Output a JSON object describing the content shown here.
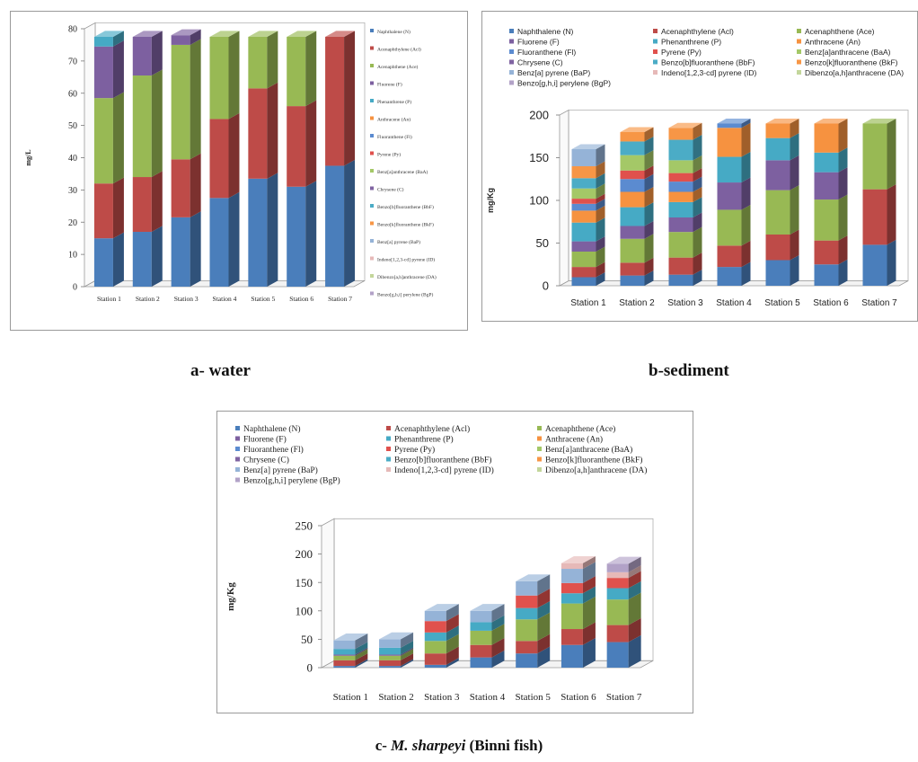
{
  "legend_labels_a": [
    "Naphthalene (N)",
    "Acenaphthylene (Acl)",
    "Acenaphthene (Ace)",
    "Fluorene (F)",
    "Phenanthrene (P)",
    "Anthracene (An)",
    "Fluoranthene (Fl)",
    "Pyrene (Py)",
    "Benz[a]anthracene (BaA)",
    "Chrysene (C)",
    "Benzo[b]fluoranthene (BbF)",
    "Benzo[k]fluoranthene (BkF)",
    "Benz[a] pyrene (BaP)",
    "Indeno[1,2,3-cd] pyrene (ID)",
    "Dibenzo[a,h]anthracene (DA)",
    "Benzo[g,h,i] perylene (BgP)"
  ],
  "legend_labels_bc": [
    "Naphthalene (N)",
    "Acenaphthylene (Acl)",
    "Acenaphthene (Ace)",
    "Fluorene (F)",
    "Phenanthrene (P)",
    "Anthracene (An)",
    "Fluoranthene (Fl)",
    "Pyrene (Py)",
    "Benz[a]anthracene (BaA)",
    "Chrysene (C)",
    "Benzo[b]fluoranthene (BbF)",
    "Benzo[k]fluoranthene (BkF)",
    "Benz[a] pyrene (BaP)",
    "Indeno[1,2,3-cd] pyrene (ID)",
    "Dibenzo[a,h]anthracene (DA)",
    "Benzo[g,h,i] perylene (BgP)"
  ],
  "series_colors": [
    "#4a7ebb",
    "#be4b48",
    "#98b954",
    "#7d60a0",
    "#46aac5",
    "#f69240",
    "#5b8bd0",
    "#e0514d",
    "#a4c867",
    "#8064a2",
    "#4bacc6",
    "#f79646",
    "#95b3d7",
    "#e6b9b8",
    "#c3d69b",
    "#b2a2c7"
  ],
  "captions": {
    "a": "a- water",
    "b": "b-sediment",
    "c_prefix": "c-",
    "c_species": "M. sharpeyi",
    "c_suffix": " (Binni fish)"
  },
  "chart_data": [
    {
      "id": "a",
      "type": "bar",
      "stacked": true,
      "ylabel": "mg/L",
      "ylim": [
        0,
        80
      ],
      "yticks": [
        "0",
        "10",
        "20",
        "30",
        "40",
        "50",
        "60",
        "70",
        "80"
      ],
      "categories": [
        "Station 1",
        "Station 2",
        "Station 3",
        "Station 4",
        "Station 5",
        "Station 6",
        "Station 7"
      ],
      "series": [
        {
          "name": "Naphthalene (N)",
          "values": [
            15,
            17,
            21.5,
            27.5,
            33.5,
            31,
            37.5
          ]
        },
        {
          "name": "Acenaphthylene (Acl)",
          "values": [
            17,
            17,
            18,
            24.5,
            28,
            25,
            40
          ]
        },
        {
          "name": "Acenaphthene (Ace)",
          "values": [
            26.5,
            31.5,
            35.5,
            25.5,
            16,
            21.5,
            0
          ]
        },
        {
          "name": "Fluorene (F)",
          "values": [
            16,
            12,
            3,
            0,
            0,
            0,
            0
          ]
        },
        {
          "name": "Phenanthrene (P)",
          "values": [
            3,
            0,
            0,
            0,
            0,
            0,
            0
          ]
        }
      ],
      "legend": "right"
    },
    {
      "id": "b",
      "type": "bar",
      "stacked": true,
      "ylabel": "mg/Kg",
      "ylim": [
        0,
        200
      ],
      "yticks": [
        "0",
        "50",
        "100",
        "150",
        "200"
      ],
      "categories": [
        "Station 1",
        "Station 2",
        "Station 3",
        "Station 4",
        "Station 5",
        "Station 6",
        "Station 7"
      ],
      "series": [
        {
          "name": "Naphthalene (N)",
          "values": [
            10,
            12,
            13,
            22,
            30,
            25,
            48
          ]
        },
        {
          "name": "Acenaphthylene (Acl)",
          "values": [
            12,
            15,
            20,
            25,
            30,
            28,
            65
          ]
        },
        {
          "name": "Acenaphthene (Ace)",
          "values": [
            18,
            28,
            30,
            42,
            52,
            48,
            77
          ]
        },
        {
          "name": "Fluorene (F)",
          "values": [
            12,
            15,
            17,
            32,
            35,
            32,
            0
          ]
        },
        {
          "name": "Phenanthrene (P)",
          "values": [
            22,
            22,
            18,
            30,
            26,
            23,
            0
          ]
        },
        {
          "name": "Anthracene (An)",
          "values": [
            14,
            18,
            12,
            34,
            17,
            34,
            0
          ]
        },
        {
          "name": "Fluoranthene (Fl)",
          "values": [
            8,
            15,
            12,
            5,
            0,
            0,
            0
          ]
        },
        {
          "name": "Pyrene (Py)",
          "values": [
            6,
            10,
            10,
            0,
            0,
            0,
            0
          ]
        },
        {
          "name": "Benz[a]anthracene (BaA)",
          "values": [
            12,
            18,
            15,
            0,
            0,
            0,
            0
          ]
        },
        {
          "name": "Chrysene (C)",
          "values": [
            0,
            0,
            0,
            0,
            0,
            0,
            0
          ]
        },
        {
          "name": "Benzo[b]fluoranthene (BbF)",
          "values": [
            12,
            16,
            24,
            0,
            0,
            0,
            0
          ]
        },
        {
          "name": "Benzo[k]fluoranthene (BkF)",
          "values": [
            14,
            11,
            14,
            0,
            0,
            0,
            0
          ]
        },
        {
          "name": "Benz[a] pyrene (BaP)",
          "values": [
            20,
            0,
            0,
            0,
            0,
            0,
            0
          ]
        }
      ],
      "legend": "top"
    },
    {
      "id": "c",
      "type": "bar",
      "stacked": true,
      "ylabel": "mg/Kg",
      "ylim": [
        0,
        250
      ],
      "yticks": [
        "0",
        "50",
        "100",
        "150",
        "200",
        "250"
      ],
      "categories": [
        "Station 1",
        "Station 2",
        "Station 3",
        "Station 4",
        "Station 5",
        "Station 6",
        "Station 7"
      ],
      "series": [
        {
          "name": "Naphthalene (N)",
          "values": [
            3,
            3,
            5,
            18,
            25,
            40,
            45
          ]
        },
        {
          "name": "Acenaphthylene (Acl)",
          "values": [
            10,
            10,
            20,
            22,
            22,
            28,
            30
          ]
        },
        {
          "name": "Acenaphthene (Ace)",
          "values": [
            8,
            8,
            22,
            25,
            38,
            45,
            45
          ]
        },
        {
          "name": "Fluorene (F)",
          "values": [
            2,
            2,
            0,
            0,
            0,
            0,
            0
          ]
        },
        {
          "name": "Phenanthrene (P)",
          "values": [
            10,
            12,
            15,
            15,
            20,
            18,
            20
          ]
        },
        {
          "name": "Anthracene (An)",
          "values": [
            0,
            0,
            0,
            0,
            0,
            0,
            0
          ]
        },
        {
          "name": "Fluoranthene (Fl)",
          "values": [
            0,
            0,
            0,
            0,
            0,
            0,
            0
          ]
        },
        {
          "name": "Pyrene (Py)",
          "values": [
            0,
            0,
            20,
            0,
            22,
            18,
            18
          ]
        },
        {
          "name": "Benz[a]anthracene (BaA)",
          "values": [
            0,
            0,
            0,
            0,
            0,
            0,
            0
          ]
        },
        {
          "name": "Chrysene (C)",
          "values": [
            0,
            0,
            0,
            0,
            0,
            0,
            0
          ]
        },
        {
          "name": "Benzo[b]fluoranthene (BbF)",
          "values": [
            0,
            0,
            0,
            0,
            0,
            0,
            0
          ]
        },
        {
          "name": "Benzo[k]fluoranthene (BkF)",
          "values": [
            0,
            0,
            0,
            0,
            0,
            0,
            0
          ]
        },
        {
          "name": "Benz[a] pyrene (BaP)",
          "values": [
            15,
            15,
            18,
            20,
            25,
            25,
            0
          ]
        },
        {
          "name": "Indeno[1,2,3-cd] pyrene (ID)",
          "values": [
            0,
            0,
            0,
            0,
            0,
            10,
            10
          ]
        },
        {
          "name": "Dibenzo[a,h]anthracene (DA)",
          "values": [
            0,
            0,
            0,
            0,
            0,
            0,
            0
          ]
        },
        {
          "name": "Benzo[g,h,i] perylene (BgP)",
          "values": [
            0,
            0,
            0,
            0,
            0,
            0,
            15
          ]
        }
      ],
      "legend": "top"
    }
  ]
}
